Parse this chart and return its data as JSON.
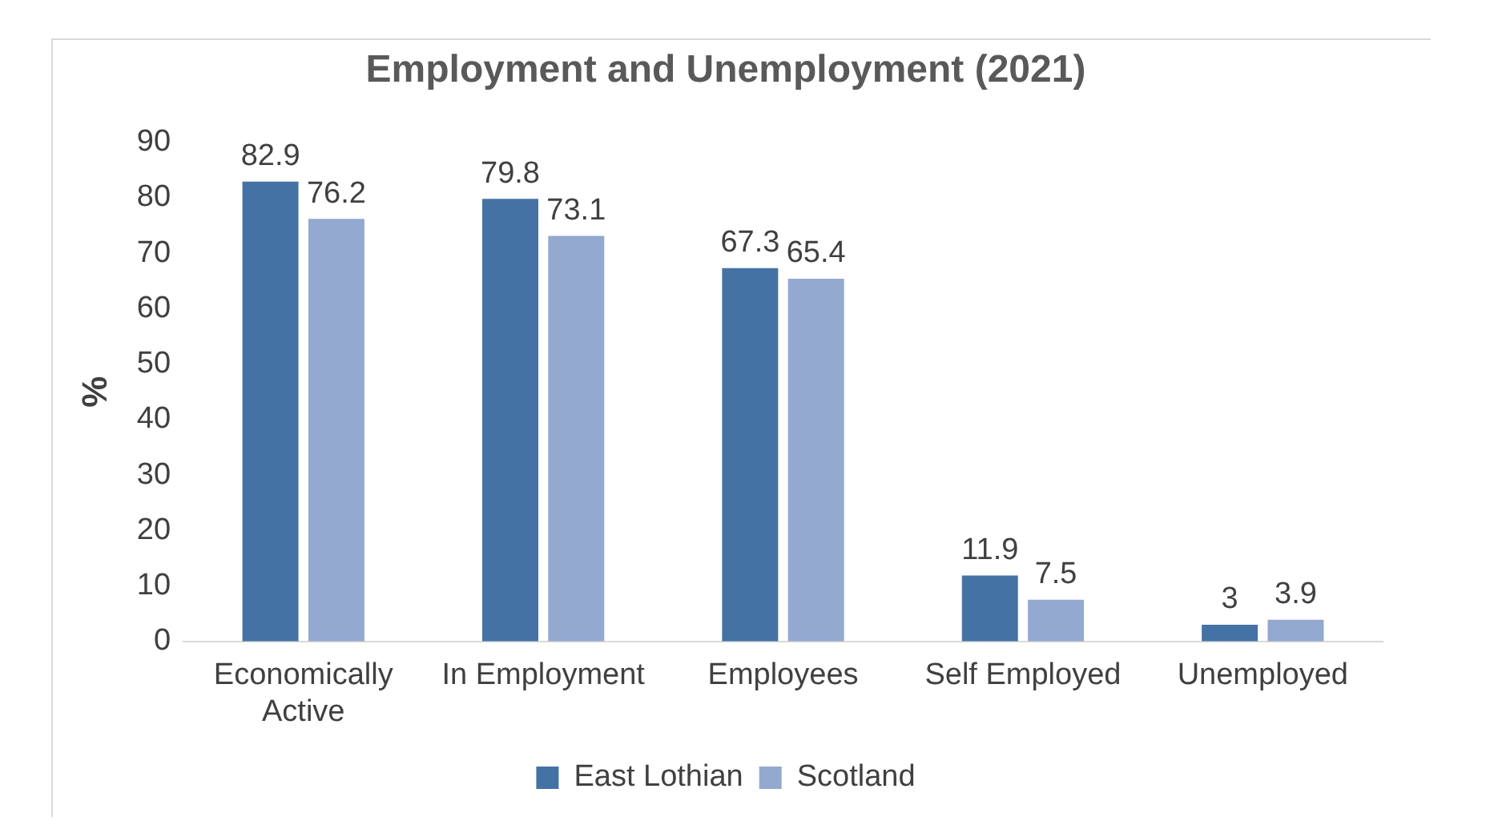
{
  "chart_data": {
    "type": "bar",
    "title": "Employment and Unemployment (2021)",
    "ylabel": "%",
    "categories": [
      [
        "Economically",
        "Active"
      ],
      "In Employment",
      "Employees",
      "Self Employed",
      "Unemployed"
    ],
    "series": [
      {
        "name": "East Lothian",
        "color": "#4472a4",
        "values": [
          82.9,
          79.8,
          67.3,
          11.9,
          3
        ]
      },
      {
        "name": "Scotland",
        "color": "#93a9d0",
        "values": [
          76.2,
          73.1,
          65.4,
          7.5,
          3.9
        ]
      }
    ],
    "ylim": [
      0,
      90
    ],
    "yticks": [
      0,
      10,
      20,
      30,
      40,
      50,
      60,
      70,
      80,
      90
    ],
    "grid": false,
    "legend": "bottom",
    "data_labels": true
  }
}
